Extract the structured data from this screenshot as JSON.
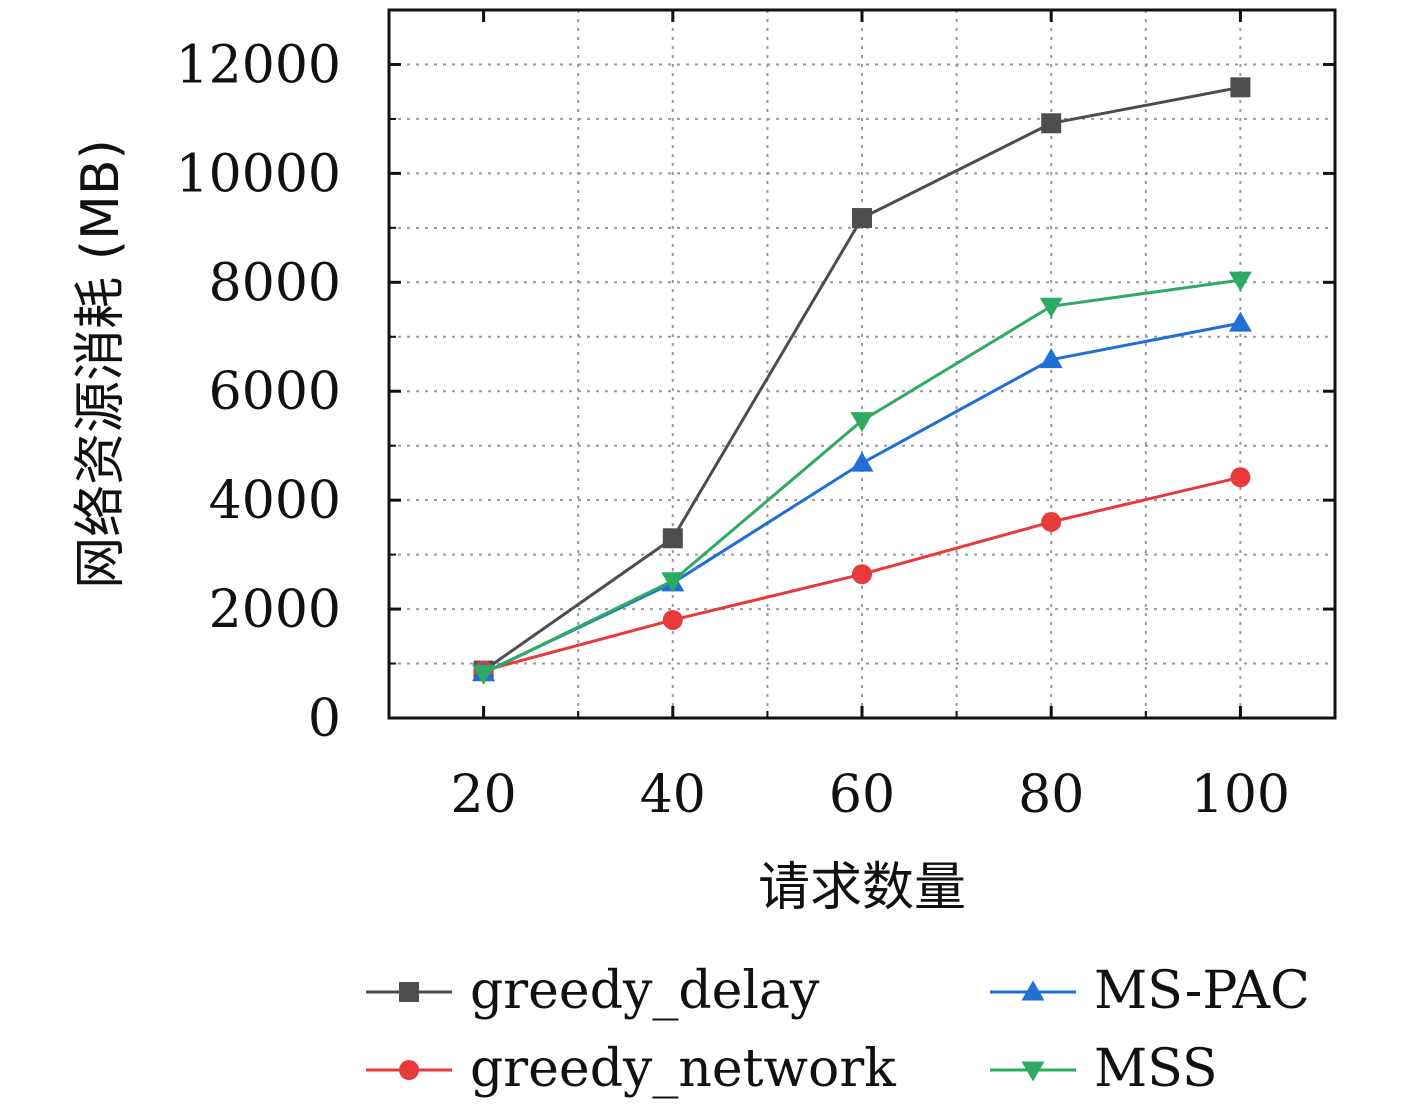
{
  "chart_data": {
    "type": "line",
    "title": "",
    "xlabel": "请求数量",
    "ylabel": "网络资源消耗 (MB)",
    "x": [
      20,
      40,
      60,
      80,
      100
    ],
    "x_ticks": [
      "20",
      "40",
      "60",
      "80",
      "100"
    ],
    "y_ticks": [
      "0",
      "2000",
      "4000",
      "6000",
      "8000",
      "10000",
      "12000"
    ],
    "xlim": [
      10,
      110
    ],
    "ylim": [
      0,
      13000
    ],
    "grid": true,
    "legend_placement": "bottom",
    "series": [
      {
        "name": "greedy_delay",
        "color": "#4d4d4d",
        "marker": "square",
        "values": [
          870,
          3300,
          9180,
          10920,
          11580
        ]
      },
      {
        "name": "greedy_network",
        "color": "#e8393b",
        "marker": "circle",
        "values": [
          870,
          1800,
          2640,
          3600,
          4420
        ]
      },
      {
        "name": "MS-PAC",
        "color": "#1f6fd6",
        "marker": "triangle-up",
        "values": [
          830,
          2480,
          4680,
          6580,
          7250
        ]
      },
      {
        "name": "MSS",
        "color": "#2eaa62",
        "marker": "triangle-down",
        "values": [
          820,
          2520,
          5460,
          7560,
          8040
        ]
      }
    ]
  }
}
